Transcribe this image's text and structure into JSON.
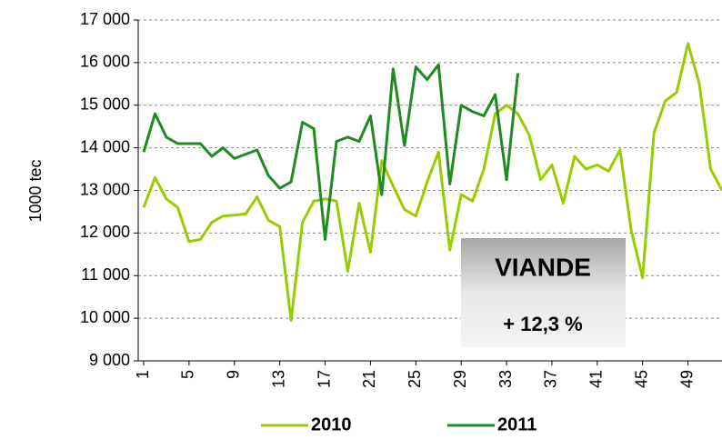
{
  "chart_data": {
    "type": "line",
    "y_label": "1000 tec",
    "x": [
      1,
      2,
      3,
      4,
      5,
      6,
      7,
      8,
      9,
      10,
      11,
      12,
      13,
      14,
      15,
      16,
      17,
      18,
      19,
      20,
      21,
      22,
      23,
      24,
      25,
      26,
      27,
      28,
      29,
      30,
      31,
      32,
      33,
      34,
      35,
      36,
      37,
      38,
      39,
      40,
      41,
      42,
      43,
      44,
      45,
      46,
      47,
      48,
      49,
      50,
      51,
      52
    ],
    "xlim": [
      1,
      52
    ],
    "xticks": [
      1,
      5,
      9,
      13,
      17,
      21,
      25,
      29,
      33,
      37,
      41,
      45,
      49
    ],
    "ylim": [
      9000,
      17000
    ],
    "yticks": [
      {
        "value": 9000,
        "label": "9 000"
      },
      {
        "value": 10000,
        "label": "10 000"
      },
      {
        "value": 11000,
        "label": "11 000"
      },
      {
        "value": 12000,
        "label": "12 000"
      },
      {
        "value": 13000,
        "label": "13 000"
      },
      {
        "value": 14000,
        "label": "14 000"
      },
      {
        "value": 15000,
        "label": "15 000"
      },
      {
        "value": 16000,
        "label": "16 000"
      },
      {
        "value": 17000,
        "label": "17 000"
      }
    ],
    "grid": true,
    "legend": "bottom",
    "series": [
      {
        "name": "2010",
        "color": "#99cc00",
        "values": [
          12600,
          13300,
          12800,
          12600,
          11800,
          11850,
          12250,
          12400,
          12420,
          12450,
          12850,
          12300,
          12150,
          9950,
          12250,
          12750,
          12800,
          12750,
          11100,
          12700,
          11550,
          13700,
          13100,
          12550,
          12400,
          13200,
          13900,
          11600,
          12900,
          12750,
          13500,
          14800,
          15000,
          14800,
          14300,
          13250,
          13600,
          12700,
          13800,
          13500,
          13600,
          13450,
          13950,
          12050,
          10950,
          14350,
          15100,
          15300,
          16450,
          15500,
          13500,
          13000
        ]
      },
      {
        "name": "2011",
        "color": "#1f8a1f",
        "values": [
          13900,
          14800,
          14250,
          14100,
          14100,
          14100,
          13800,
          14000,
          13750,
          13850,
          13950,
          13350,
          13050,
          13200,
          14600,
          14450,
          11850,
          14150,
          14250,
          14150,
          14750,
          12900,
          15850,
          14050,
          15900,
          15600,
          15950,
          13150,
          15000,
          14850,
          14750,
          15250,
          13250,
          15750,
          null,
          null,
          null,
          null,
          null,
          null,
          null,
          null,
          null,
          null,
          null,
          null,
          null,
          null,
          null,
          null,
          null,
          null
        ]
      }
    ],
    "annotations": [
      "VIANDE",
      "+ 12,3 %"
    ]
  }
}
